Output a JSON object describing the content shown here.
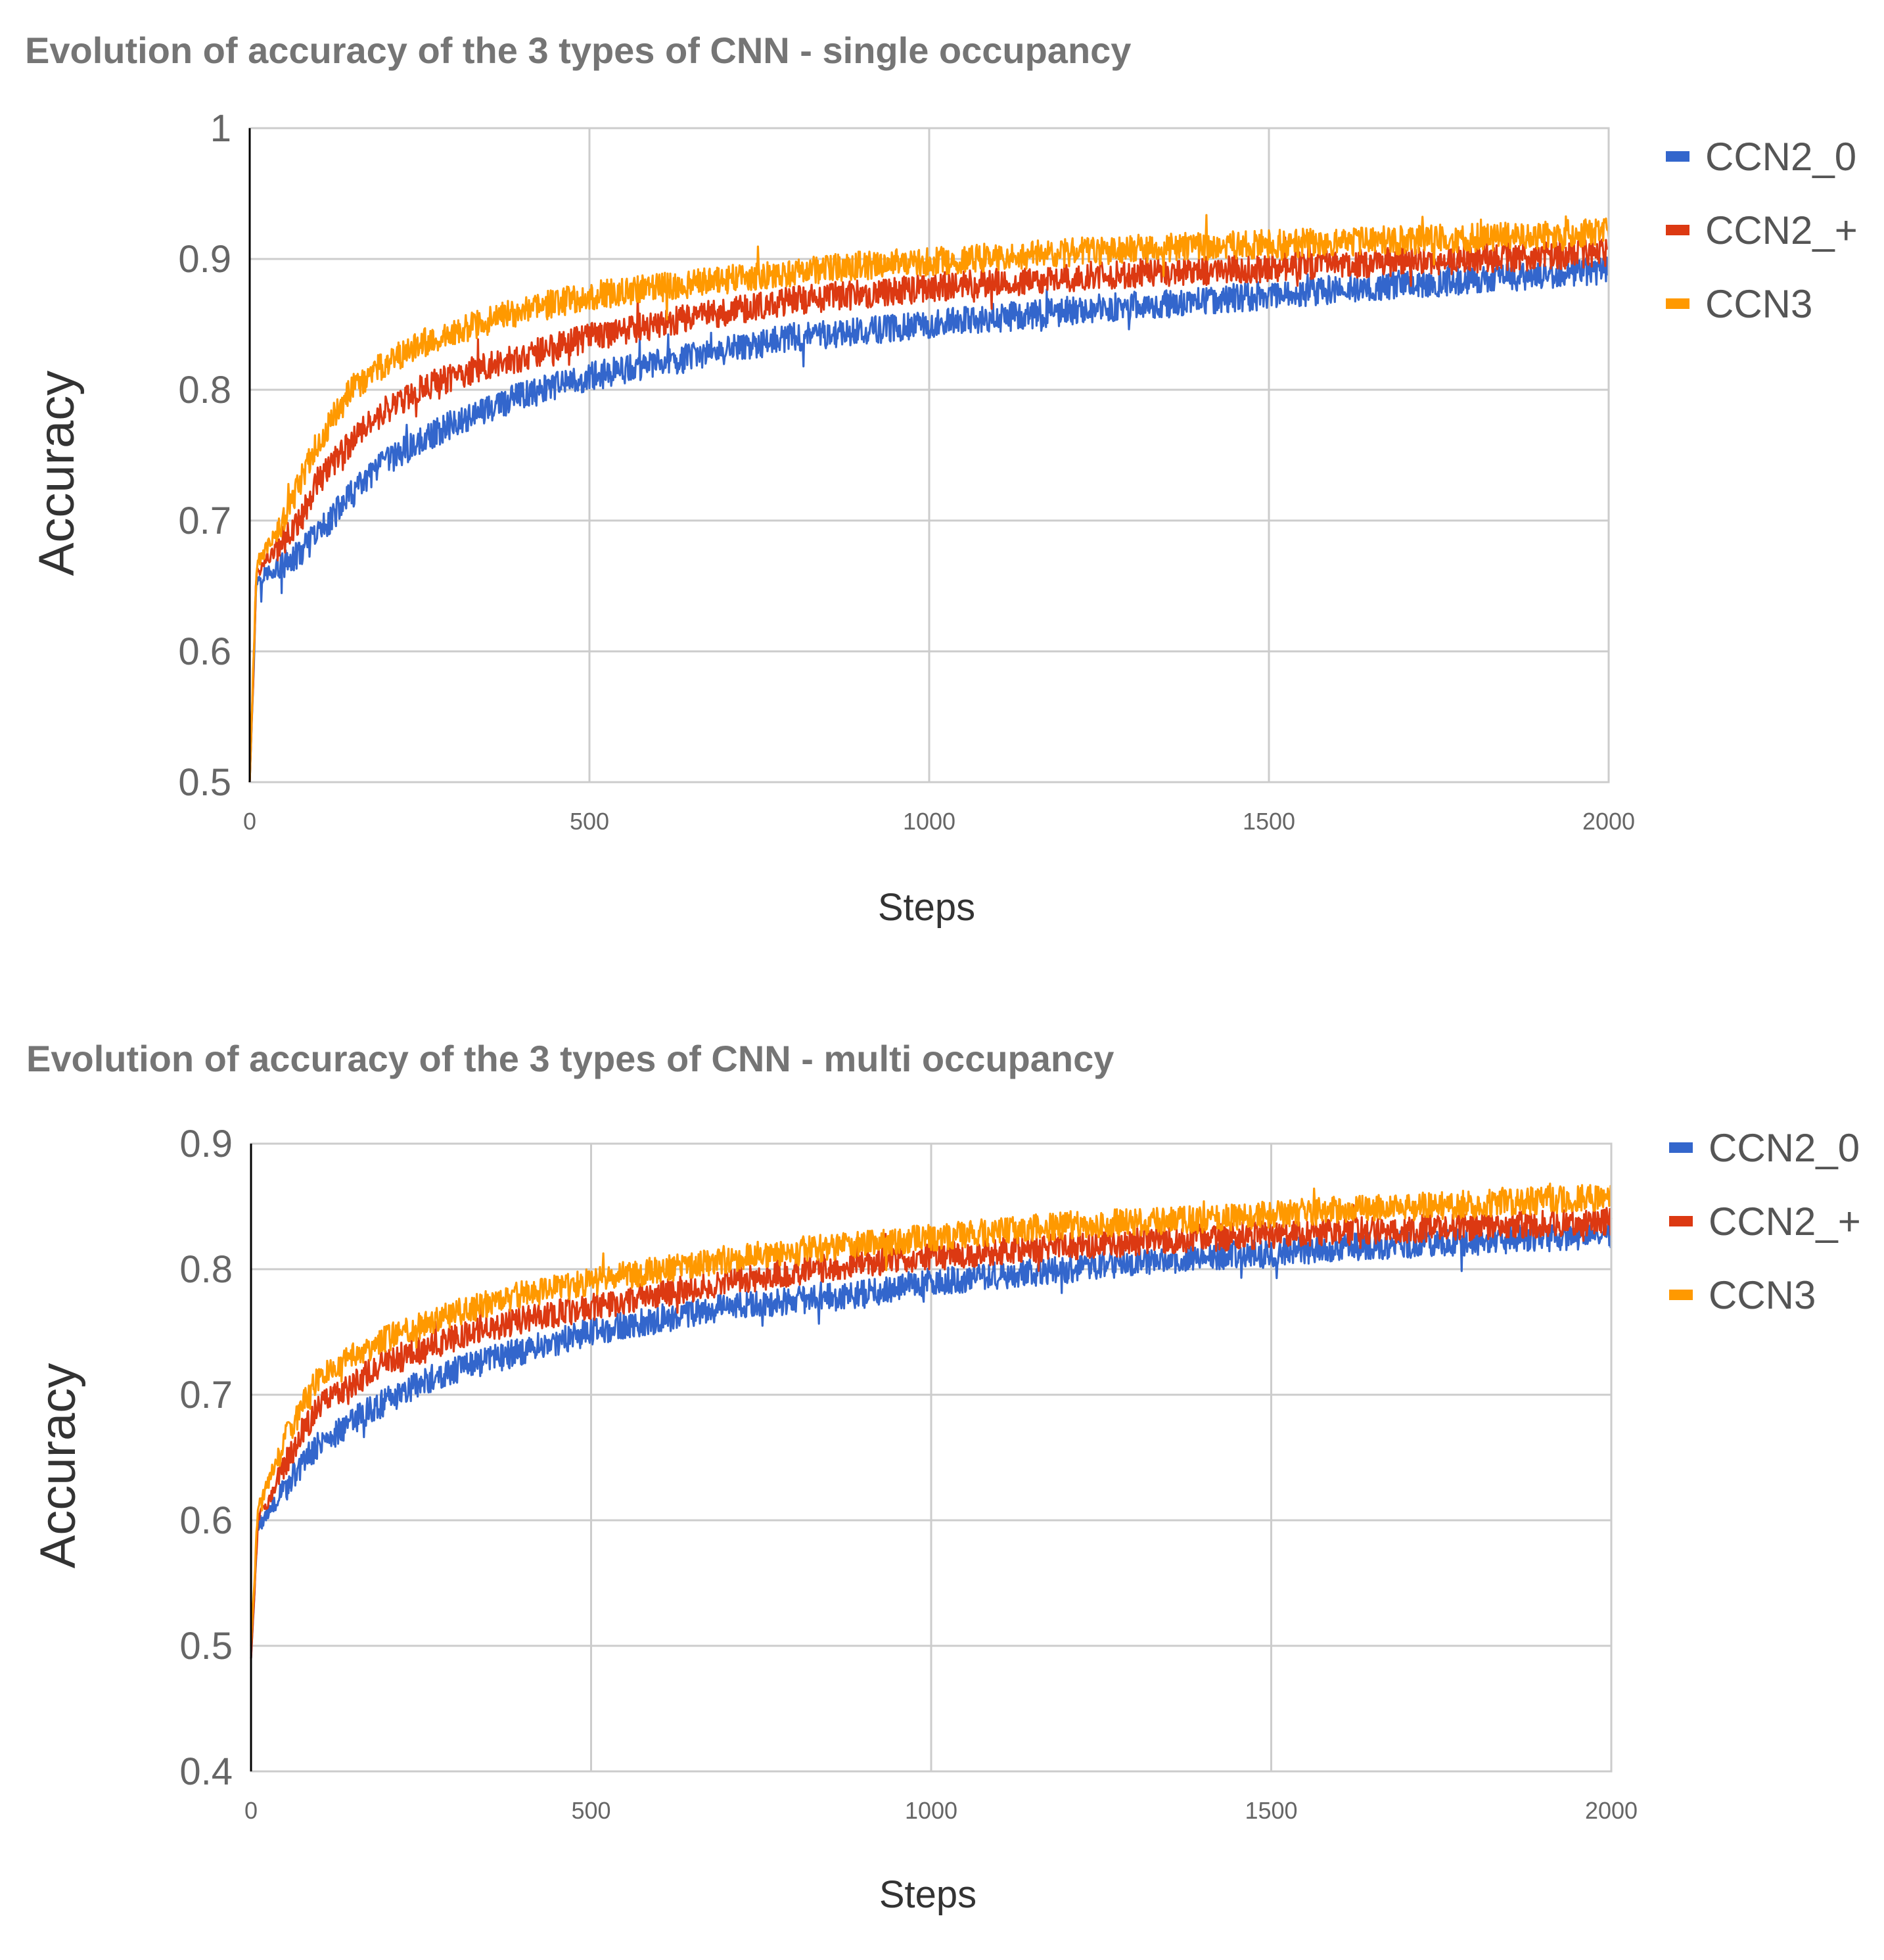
{
  "chart_data": [
    {
      "type": "line",
      "title": "Evolution of accuracy of the 3 types of CNN - single occupancy",
      "xlabel": "Steps",
      "ylabel": "Accuracy",
      "xlim": [
        0,
        2000
      ],
      "ylim": [
        0.5,
        1
      ],
      "x_ticks": [
        "0",
        "500",
        "1000",
        "1500",
        "2000"
      ],
      "y_ticks": [
        "0.5",
        "0.6",
        "0.7",
        "0.8",
        "0.9",
        "1"
      ],
      "grid": true,
      "legend": "right",
      "x": [
        0,
        10,
        25,
        50,
        75,
        100,
        150,
        200,
        250,
        300,
        400,
        500,
        600,
        700,
        800,
        900,
        1000,
        1200,
        1400,
        1600,
        1800,
        2000
      ],
      "series": [
        {
          "name": "CCN2_0",
          "color": "#3366cc",
          "values": [
            0.5,
            0.655,
            0.66,
            0.665,
            0.675,
            0.69,
            0.72,
            0.745,
            0.76,
            0.775,
            0.795,
            0.81,
            0.82,
            0.83,
            0.84,
            0.845,
            0.85,
            0.86,
            0.868,
            0.877,
            0.884,
            0.892
          ]
        },
        {
          "name": "CCN2_+",
          "color": "#dc3912",
          "values": [
            0.5,
            0.66,
            0.67,
            0.685,
            0.7,
            0.73,
            0.76,
            0.785,
            0.8,
            0.81,
            0.825,
            0.84,
            0.85,
            0.86,
            0.868,
            0.873,
            0.878,
            0.886,
            0.891,
            0.896,
            0.9,
            0.905
          ]
        },
        {
          "name": "CCN3",
          "color": "#ff9900",
          "values": [
            0.5,
            0.665,
            0.68,
            0.7,
            0.73,
            0.76,
            0.8,
            0.82,
            0.835,
            0.845,
            0.86,
            0.872,
            0.878,
            0.884,
            0.89,
            0.895,
            0.898,
            0.905,
            0.91,
            0.913,
            0.916,
            0.92
          ]
        }
      ]
    },
    {
      "type": "line",
      "title": "Evolution of accuracy of the 3 types of CNN - multi occupancy",
      "xlabel": "Steps",
      "ylabel": "Accuracy",
      "xlim": [
        0,
        2000
      ],
      "ylim": [
        0.4,
        0.9
      ],
      "x_ticks": [
        "0",
        "500",
        "1000",
        "1500",
        "2000"
      ],
      "y_ticks": [
        "0.4",
        "0.5",
        "0.6",
        "0.7",
        "0.8",
        "0.9"
      ],
      "grid": true,
      "legend": "right",
      "x": [
        0,
        10,
        25,
        50,
        75,
        100,
        150,
        200,
        250,
        300,
        400,
        500,
        600,
        700,
        800,
        900,
        1000,
        1200,
        1400,
        1600,
        1800,
        2000
      ],
      "series": [
        {
          "name": "CCN2_0",
          "color": "#3366cc",
          "values": [
            0.49,
            0.595,
            0.605,
            0.625,
            0.645,
            0.66,
            0.68,
            0.695,
            0.71,
            0.72,
            0.735,
            0.75,
            0.76,
            0.77,
            0.775,
            0.78,
            0.79,
            0.8,
            0.81,
            0.817,
            0.822,
            0.828
          ]
        },
        {
          "name": "CCN2_+",
          "color": "#dc3912",
          "values": [
            0.49,
            0.6,
            0.615,
            0.645,
            0.67,
            0.69,
            0.71,
            0.725,
            0.735,
            0.745,
            0.76,
            0.77,
            0.78,
            0.79,
            0.798,
            0.805,
            0.81,
            0.818,
            0.825,
            0.83,
            0.834,
            0.838
          ]
        },
        {
          "name": "CCN3",
          "color": "#ff9900",
          "values": [
            0.5,
            0.61,
            0.63,
            0.665,
            0.69,
            0.715,
            0.73,
            0.745,
            0.755,
            0.765,
            0.78,
            0.79,
            0.8,
            0.808,
            0.815,
            0.82,
            0.825,
            0.835,
            0.84,
            0.847,
            0.852,
            0.858
          ]
        }
      ]
    }
  ]
}
